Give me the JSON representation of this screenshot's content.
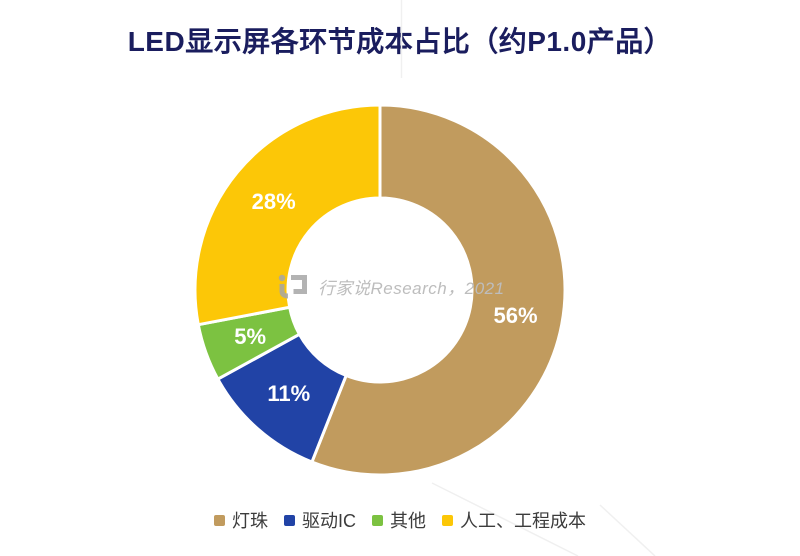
{
  "title": "LED显示屏各环节成本占比（约P1.0产品）",
  "watermark": {
    "text": "行家说Research，2021",
    "logo": "hangjiashuo-logo"
  },
  "chart_data": {
    "type": "pie",
    "subtype": "donut",
    "title": "LED显示屏各环节成本占比（约P1.0产品）",
    "start_angle_deg": 0,
    "direction": "clockwise",
    "inner_radius_ratio": 0.5,
    "legend_position": "bottom",
    "data_label_format": "percent",
    "data_label_color": "#ffffff",
    "segments": [
      {
        "label": "灯珠",
        "value": 56,
        "display": "56%",
        "color": "#c19b5e"
      },
      {
        "label": "驱动IC",
        "value": 11,
        "display": "11%",
        "color": "#2143a6"
      },
      {
        "label": "其他",
        "value": 5,
        "display": "5%",
        "color": "#7cc241"
      },
      {
        "label": "人工、工程成本",
        "value": 28,
        "display": "28%",
        "color": "#fcc707"
      }
    ]
  },
  "colors": {
    "background": "#ffffff",
    "title": "#1a1d5e",
    "legend_text": "#3c3c3c",
    "watermark_text": "#bdbdbd",
    "watermark_logo": "#a6a6a6",
    "segment_border": "#ffffff",
    "faint_watermark_line": "#f0f0f0"
  }
}
